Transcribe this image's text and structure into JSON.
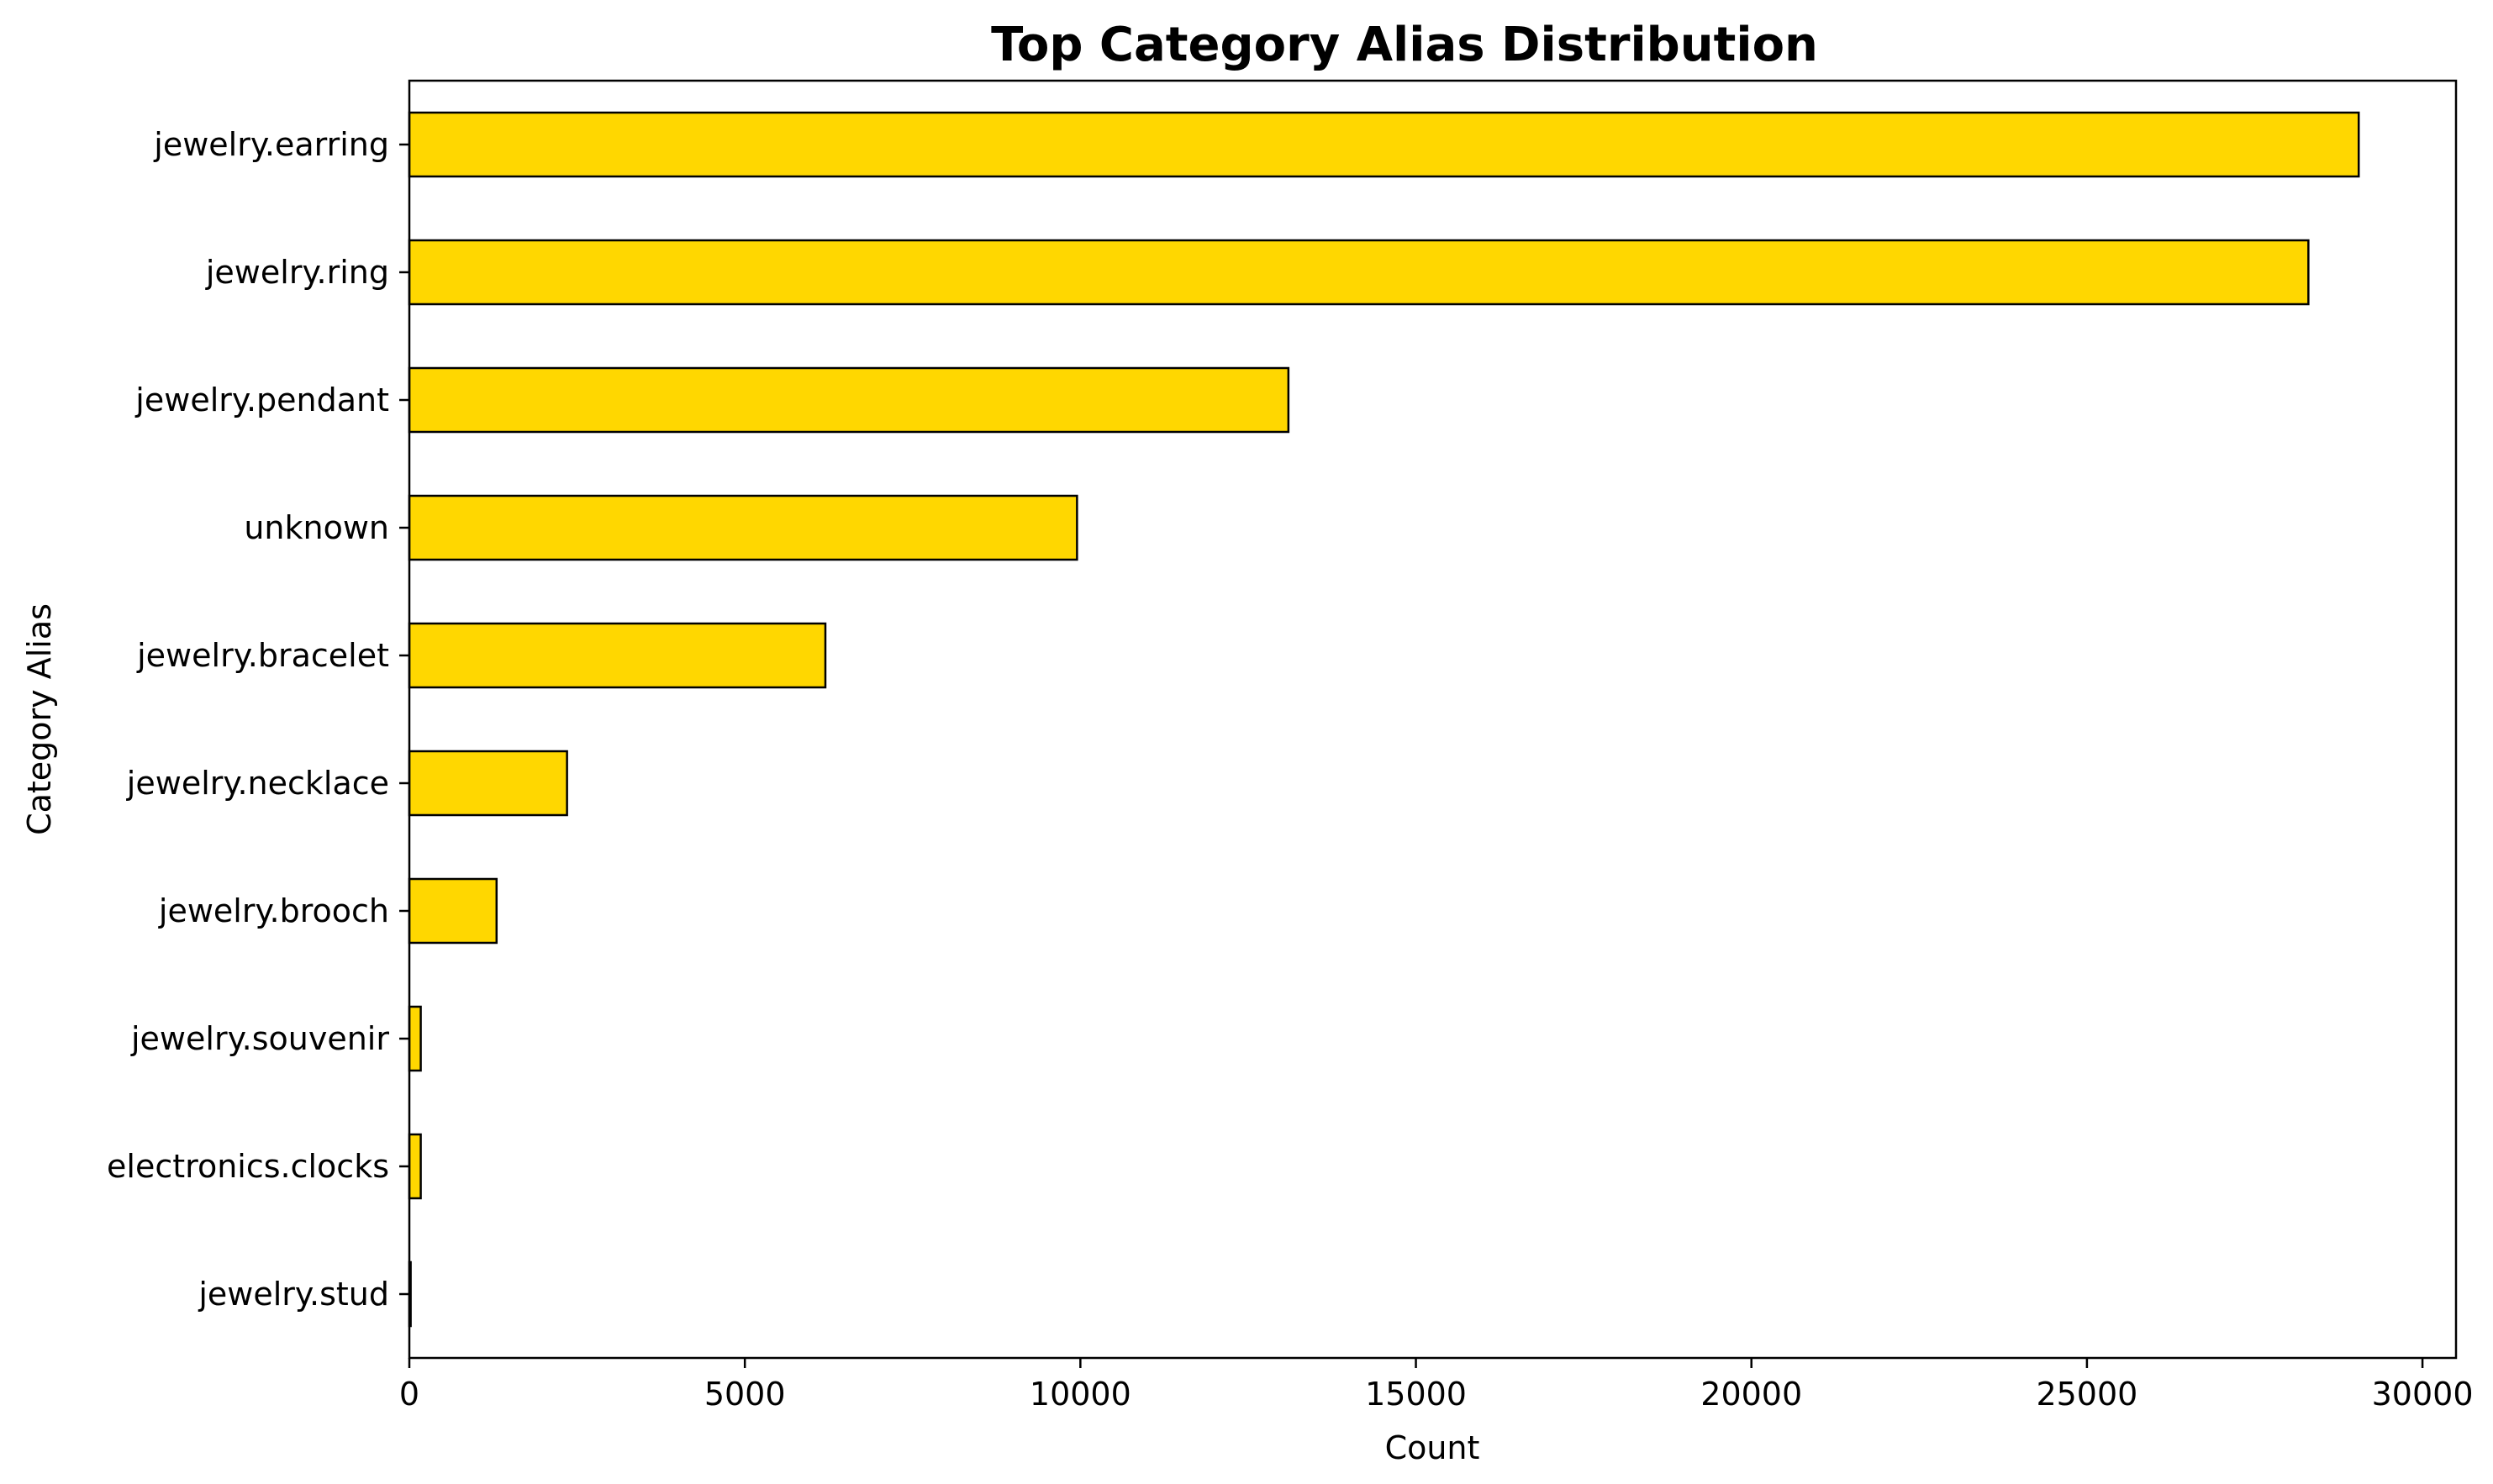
{
  "chart_data": {
    "type": "bar",
    "orientation": "horizontal",
    "title": "Top Category Alias Distribution",
    "xlabel": "Count",
    "ylabel": "Category Alias",
    "categories": [
      "jewelry.earring",
      "jewelry.ring",
      "jewelry.pendant",
      "unknown",
      "jewelry.bracelet",
      "jewelry.necklace",
      "jewelry.brooch",
      "jewelry.souvenir",
      "electronics.clocks",
      "jewelry.stud"
    ],
    "values": [
      29050,
      28300,
      13100,
      9950,
      6200,
      2350,
      1300,
      170,
      170,
      20
    ],
    "xlim": [
      0,
      30500
    ],
    "xticks": [
      0,
      5000,
      10000,
      15000,
      20000,
      25000,
      30000
    ],
    "grid": false,
    "legend": "none",
    "colors": {
      "bar_fill": "#FFD700",
      "bar_edge": "#000000",
      "axis": "#000000",
      "background": "#ffffff"
    }
  }
}
